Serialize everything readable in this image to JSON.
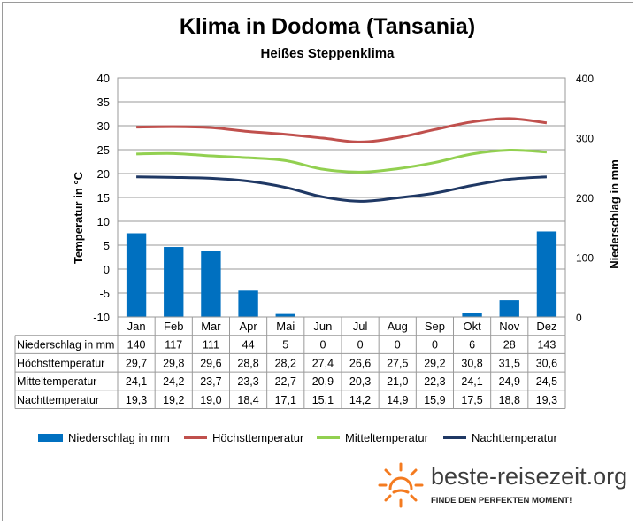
{
  "chart_data": {
    "type": "bar+line",
    "title": "Klima in Dodoma (Tansania)",
    "subtitle": "Heißes Steppenklima",
    "ylabel_left": "Temperatur in °C",
    "ylabel_right": "Niederschlag in mm",
    "ylim_left": [
      -10,
      40
    ],
    "ylim_right": [
      0,
      400
    ],
    "yticks_left": [
      "40",
      "35",
      "30",
      "25",
      "20",
      "15",
      "10",
      "5",
      "0",
      "-5",
      "-10"
    ],
    "yticks_right": [
      "400",
      "300",
      "200",
      "100",
      "0"
    ],
    "categories": [
      "Jan",
      "Feb",
      "Mar",
      "Apr",
      "Mai",
      "Jun",
      "Jul",
      "Aug",
      "Sep",
      "Okt",
      "Nov",
      "Dez"
    ],
    "grid": true,
    "legend_position": "bottom",
    "series": [
      {
        "name": "Niederschlag in mm",
        "kind": "bar",
        "axis": "right",
        "color": "#0070c0",
        "values": [
          140,
          117,
          111,
          44,
          5,
          0,
          0,
          0,
          0,
          6,
          28,
          143
        ],
        "labels": [
          "140",
          "117",
          "111",
          "44",
          "5",
          "0",
          "0",
          "0",
          "0",
          "6",
          "28",
          "143"
        ]
      },
      {
        "name": "Höchsttemperatur",
        "kind": "line",
        "axis": "left",
        "color": "#c0504d",
        "values": [
          29.7,
          29.8,
          29.6,
          28.8,
          28.2,
          27.4,
          26.6,
          27.5,
          29.2,
          30.8,
          31.5,
          30.6
        ],
        "labels": [
          "29,7",
          "29,8",
          "29,6",
          "28,8",
          "28,2",
          "27,4",
          "26,6",
          "27,5",
          "29,2",
          "30,8",
          "31,5",
          "30,6"
        ]
      },
      {
        "name": "Mitteltemperatur",
        "kind": "line",
        "axis": "left",
        "color": "#92d050",
        "values": [
          24.1,
          24.2,
          23.7,
          23.3,
          22.7,
          20.9,
          20.3,
          21.0,
          22.3,
          24.1,
          24.9,
          24.5
        ],
        "labels": [
          "24,1",
          "24,2",
          "23,7",
          "23,3",
          "22,7",
          "20,9",
          "20,3",
          "21,0",
          "22,3",
          "24,1",
          "24,9",
          "24,5"
        ]
      },
      {
        "name": "Nachttemperatur",
        "kind": "line",
        "axis": "left",
        "color": "#1f3864",
        "values": [
          19.3,
          19.2,
          19.0,
          18.4,
          17.1,
          15.1,
          14.2,
          14.9,
          15.9,
          17.5,
          18.8,
          19.3
        ],
        "labels": [
          "19,3",
          "19,2",
          "19,0",
          "18,4",
          "17,1",
          "15,1",
          "14,2",
          "14,9",
          "15,9",
          "17,5",
          "18,8",
          "19,3"
        ]
      }
    ]
  },
  "branding": {
    "site": "beste-reisezeit.org",
    "slogan": "FINDE DEN PERFEKTEN MOMENT!",
    "icon": "sun-icon",
    "accent": "#f47b20"
  }
}
